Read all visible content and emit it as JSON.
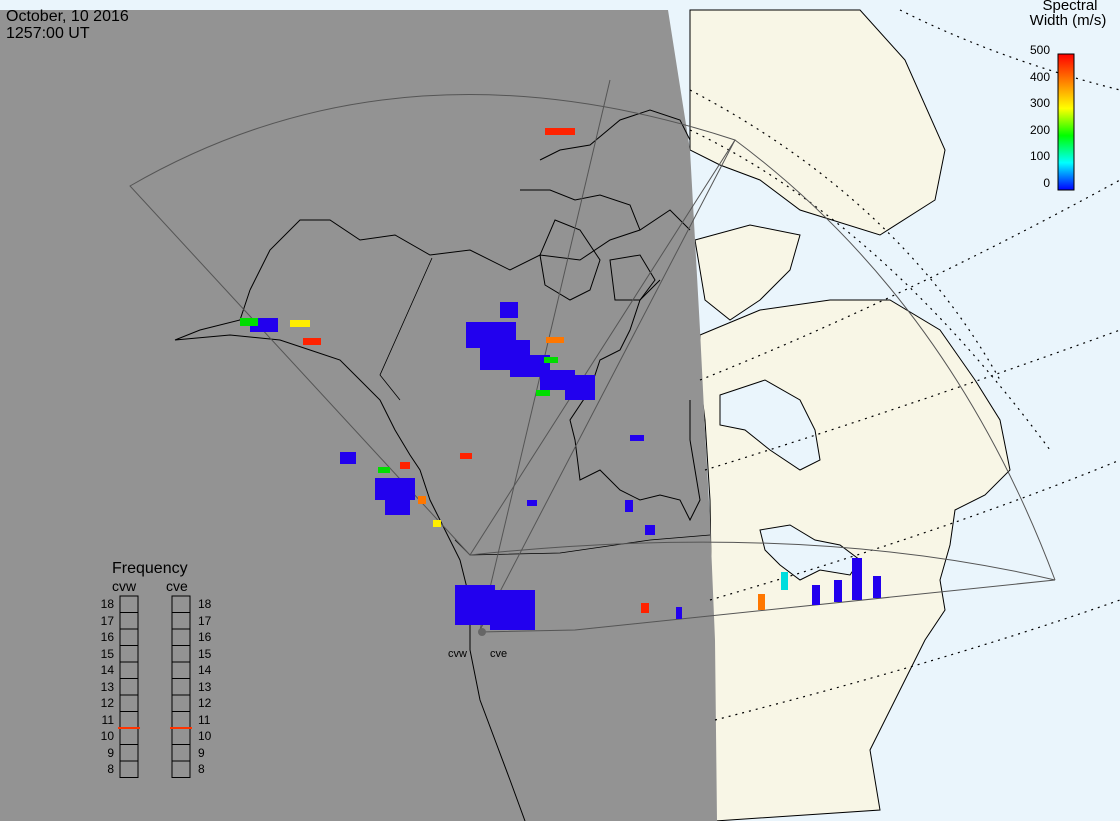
{
  "header": {
    "date": "October, 10 2016",
    "time": "1257:00 UT"
  },
  "colorbar": {
    "title_line1": "Spectral",
    "title_line2": "Width (m/s)",
    "ticks": [
      "500",
      "400",
      "300",
      "200",
      "100",
      "0"
    ],
    "colors": [
      "#ff0000",
      "#ff7f00",
      "#ffff00",
      "#00ff00",
      "#00ffff",
      "#0000ff"
    ]
  },
  "frequency": {
    "title": "Frequency",
    "radars": [
      "cvw",
      "cve"
    ],
    "ticks": [
      "18",
      "17",
      "16",
      "15",
      "14",
      "13",
      "12",
      "11",
      "10",
      "9",
      "8"
    ],
    "cvw_value": 10.5,
    "cve_value": 10.5
  },
  "stations": {
    "cvw": "cvw",
    "cve": "cve"
  },
  "map_colors": {
    "night": "#939393",
    "land_day": "#f8f6e6",
    "ocean_day": "#eaf5fc"
  }
}
